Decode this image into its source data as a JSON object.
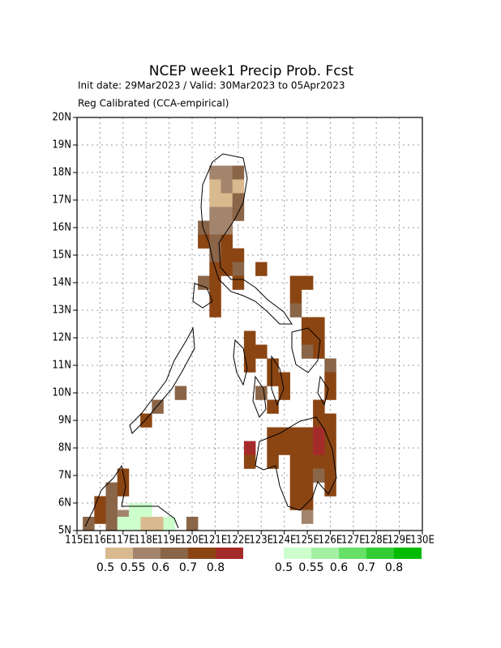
{
  "title": "NCEP week1 Precip Prob. Fcst",
  "subtitle": "Init date: 29Mar2023 / Valid: 30Mar2023 to 05Apr2023",
  "method": "Reg Calibrated (CCA-empirical)",
  "xlim": [
    115,
    130
  ],
  "ylim": [
    5,
    20
  ],
  "xticks": [
    {
      "value": 115,
      "label": "115E"
    },
    {
      "value": 116,
      "label": "116E"
    },
    {
      "value": 117,
      "label": "117E"
    },
    {
      "value": 118,
      "label": "118E"
    },
    {
      "value": 119,
      "label": "119E"
    },
    {
      "value": 120,
      "label": "120E"
    },
    {
      "value": 121,
      "label": "121E"
    },
    {
      "value": 122,
      "label": "122E"
    },
    {
      "value": 123,
      "label": "123E"
    },
    {
      "value": 124,
      "label": "124E"
    },
    {
      "value": 125,
      "label": "125E"
    },
    {
      "value": 126,
      "label": "126E"
    },
    {
      "value": 127,
      "label": "127E"
    },
    {
      "value": 128,
      "label": "128E"
    },
    {
      "value": 129,
      "label": "129E"
    },
    {
      "value": 130,
      "label": "130E"
    }
  ],
  "yticks": [
    {
      "value": 5,
      "label": "5N"
    },
    {
      "value": 6,
      "label": "6N"
    },
    {
      "value": 7,
      "label": "7N"
    },
    {
      "value": 8,
      "label": "8N"
    },
    {
      "value": 9,
      "label": "9N"
    },
    {
      "value": 10,
      "label": "10N"
    },
    {
      "value": 11,
      "label": "11N"
    },
    {
      "value": 12,
      "label": "12N"
    },
    {
      "value": 13,
      "label": "13N"
    },
    {
      "value": 14,
      "label": "14N"
    },
    {
      "value": 15,
      "label": "15N"
    },
    {
      "value": 16,
      "label": "16N"
    },
    {
      "value": 17,
      "label": "17N"
    },
    {
      "value": 18,
      "label": "18N"
    },
    {
      "value": 19,
      "label": "19N"
    },
    {
      "value": 20,
      "label": "20N"
    }
  ],
  "grid": true,
  "dry_colorbar": {
    "levels": [
      0.5,
      0.55,
      0.6,
      0.7,
      0.8
    ],
    "colors": [
      "#d9b98e",
      "#a3846c",
      "#8a6548",
      "#8b4513",
      "#a52a2a"
    ]
  },
  "wet_colorbar": {
    "levels": [
      0.5,
      0.55,
      0.6,
      0.7,
      0.8
    ],
    "colors": [
      "#ccffcc",
      "#a3f0a3",
      "#66e066",
      "#33cc33",
      "#00bb00"
    ]
  },
  "dry_cells": [
    [
      120.75,
      17.75,
      0.55
    ],
    [
      121.25,
      17.75,
      0.55
    ],
    [
      121.75,
      17.75,
      0.6
    ],
    [
      120.75,
      17.25,
      0.5
    ],
    [
      121.25,
      17.25,
      0.55
    ],
    [
      121.75,
      17.25,
      0.5
    ],
    [
      120.75,
      16.75,
      0.5
    ],
    [
      121.25,
      16.75,
      0.5
    ],
    [
      121.75,
      16.75,
      0.6
    ],
    [
      120.75,
      16.25,
      0.55
    ],
    [
      121.25,
      16.25,
      0.55
    ],
    [
      121.75,
      16.25,
      0.6
    ],
    [
      120.25,
      15.75,
      0.6
    ],
    [
      120.75,
      15.75,
      0.55
    ],
    [
      121.25,
      15.75,
      0.55
    ],
    [
      120.25,
      15.25,
      0.7
    ],
    [
      120.75,
      15.25,
      0.6
    ],
    [
      121.25,
      15.25,
      0.7
    ],
    [
      120.75,
      14.75,
      0.6
    ],
    [
      121.25,
      14.75,
      0.7
    ],
    [
      121.75,
      14.75,
      0.7
    ],
    [
      120.75,
      14.25,
      0.7
    ],
    [
      121.25,
      14.25,
      0.7
    ],
    [
      121.75,
      14.25,
      0.6
    ],
    [
      122.75,
      14.25,
      0.7
    ],
    [
      120.25,
      13.75,
      0.6
    ],
    [
      120.75,
      13.75,
      0.7
    ],
    [
      121.75,
      13.75,
      0.7
    ],
    [
      124.25,
      13.75,
      0.7
    ],
    [
      124.75,
      13.75,
      0.7
    ],
    [
      120.75,
      13.25,
      0.7
    ],
    [
      124.25,
      13.25,
      0.7
    ],
    [
      120.75,
      12.75,
      0.7
    ],
    [
      124.25,
      12.75,
      0.6
    ],
    [
      124.75,
      12.25,
      0.7
    ],
    [
      125.25,
      12.25,
      0.7
    ],
    [
      122.25,
      11.75,
      0.7
    ],
    [
      124.75,
      11.75,
      0.7
    ],
    [
      125.25,
      11.75,
      0.7
    ],
    [
      122.25,
      11.25,
      0.7
    ],
    [
      122.75,
      11.25,
      0.7
    ],
    [
      124.75,
      11.25,
      0.6
    ],
    [
      125.25,
      11.25,
      0.7
    ],
    [
      122.25,
      10.75,
      0.7
    ],
    [
      123.25,
      10.75,
      0.7
    ],
    [
      125.75,
      10.75,
      0.6
    ],
    [
      123.25,
      10.25,
      0.7
    ],
    [
      123.75,
      10.25,
      0.7
    ],
    [
      125.75,
      10.25,
      0.7
    ],
    [
      119.25,
      9.75,
      0.6
    ],
    [
      122.75,
      9.75,
      0.6
    ],
    [
      123.75,
      9.75,
      0.7
    ],
    [
      125.75,
      9.75,
      0.7
    ],
    [
      118.25,
      9.25,
      0.6
    ],
    [
      123.25,
      9.25,
      0.7
    ],
    [
      125.25,
      9.25,
      0.7
    ],
    [
      117.75,
      8.75,
      0.7
    ],
    [
      125.25,
      8.75,
      0.7
    ],
    [
      125.75,
      8.75,
      0.7
    ],
    [
      123.25,
      8.25,
      0.7
    ],
    [
      123.75,
      8.25,
      0.7
    ],
    [
      124.25,
      8.25,
      0.7
    ],
    [
      124.75,
      8.25,
      0.7
    ],
    [
      125.25,
      8.25,
      0.8
    ],
    [
      125.75,
      8.25,
      0.7
    ],
    [
      122.25,
      7.75,
      0.8
    ],
    [
      123.25,
      7.75,
      0.7
    ],
    [
      123.75,
      7.75,
      0.7
    ],
    [
      124.25,
      7.75,
      0.7
    ],
    [
      124.75,
      7.75,
      0.7
    ],
    [
      125.25,
      7.75,
      0.8
    ],
    [
      125.75,
      7.75,
      0.7
    ],
    [
      122.25,
      7.25,
      0.7
    ],
    [
      123.25,
      7.25,
      0.7
    ],
    [
      124.25,
      7.25,
      0.7
    ],
    [
      124.75,
      7.25,
      0.7
    ],
    [
      125.25,
      7.25,
      0.7
    ],
    [
      125.75,
      7.25,
      0.7
    ],
    [
      116.75,
      6.75,
      0.7
    ],
    [
      124.25,
      6.75,
      0.7
    ],
    [
      124.75,
      6.75,
      0.7
    ],
    [
      125.25,
      6.75,
      0.6
    ],
    [
      125.75,
      6.75,
      0.7
    ],
    [
      116.25,
      6.25,
      0.6
    ],
    [
      116.75,
      6.25,
      0.7
    ],
    [
      124.25,
      6.25,
      0.7
    ],
    [
      124.75,
      6.25,
      0.7
    ],
    [
      125.75,
      6.25,
      0.7
    ],
    [
      115.75,
      5.75,
      0.7
    ],
    [
      116.25,
      5.75,
      0.6
    ],
    [
      124.25,
      5.75,
      0.7
    ],
    [
      124.75,
      5.75,
      0.7
    ],
    [
      115.75,
      5.25,
      0.7
    ],
    [
      116.25,
      5.25,
      0.6
    ],
    [
      116.75,
      5.25,
      0.55
    ],
    [
      124.75,
      5.25,
      0.55
    ],
    [
      115.25,
      5.0,
      0.6
    ],
    [
      116.25,
      5.0,
      0.6
    ],
    [
      117.75,
      5.0,
      0.5
    ],
    [
      118.25,
      5.0,
      0.5
    ],
    [
      119.75,
      5.0,
      0.6
    ]
  ],
  "wet_cells": [
    [
      117.25,
      5.5,
      0.5
    ],
    [
      117.75,
      5.5,
      0.5
    ],
    [
      116.75,
      5.0,
      0.5
    ],
    [
      117.25,
      5.0,
      0.5
    ],
    [
      118.75,
      5.0,
      0.5
    ]
  ]
}
